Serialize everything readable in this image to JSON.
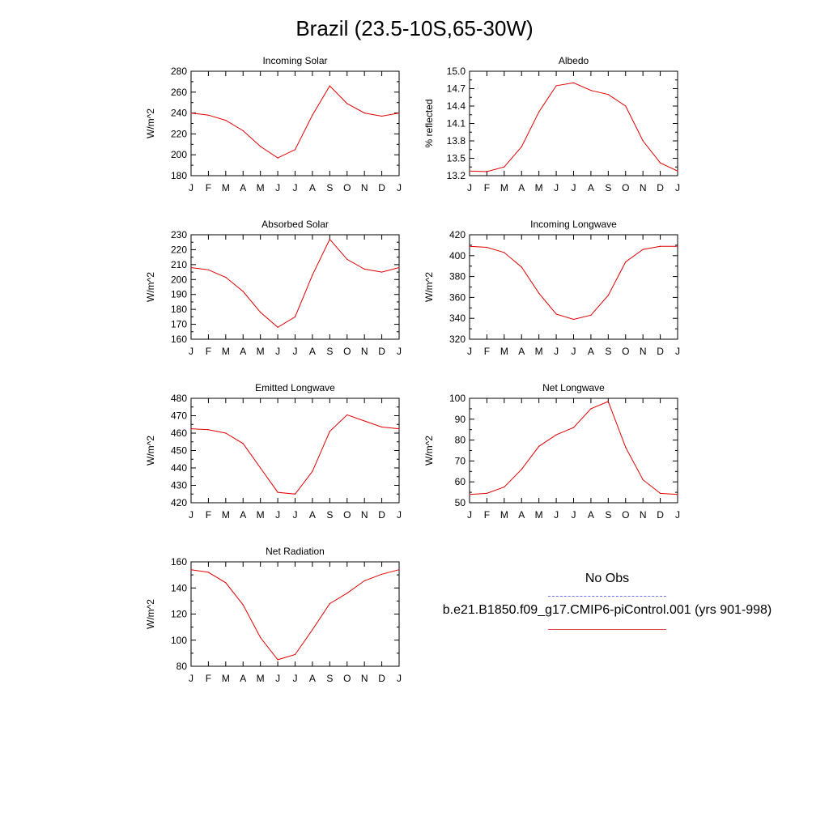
{
  "title": "Brazil (23.5-10S,65-30W)",
  "colors": {
    "model": "#e00000",
    "obs": "#6f6ff0"
  },
  "legend": {
    "obs_label": "No Obs",
    "model_label": "b.e21.B1850.f09_g17.CMIP6-piControl.001 (yrs 901-998)"
  },
  "chart_data": [
    {
      "type": "line",
      "title": "Incoming Solar",
      "ylabel": "W/m^2",
      "categories": [
        "J",
        "F",
        "M",
        "A",
        "M",
        "J",
        "J",
        "A",
        "S",
        "O",
        "N",
        "D",
        "J"
      ],
      "ylim": [
        180,
        280
      ],
      "yticks": [
        "180",
        "200",
        "220",
        "240",
        "260",
        "280"
      ],
      "yminor": 10,
      "series": [
        {
          "values": [
            240,
            238,
            233,
            223,
            208,
            197,
            205,
            238,
            266,
            249,
            240,
            237,
            240
          ]
        }
      ]
    },
    {
      "type": "line",
      "title": "Albedo",
      "ylabel": "% reflected",
      "categories": [
        "J",
        "F",
        "M",
        "A",
        "M",
        "J",
        "J",
        "A",
        "S",
        "O",
        "N",
        "D",
        "J"
      ],
      "ylim": [
        13.2,
        15.0
      ],
      "yticks": [
        "13.2",
        "13.5",
        "13.8",
        "14.1",
        "14.4",
        "14.7",
        "15.0"
      ],
      "yminor": 0.15,
      "series": [
        {
          "values": [
            13.28,
            13.27,
            13.35,
            13.7,
            14.3,
            14.75,
            14.8,
            14.67,
            14.6,
            14.4,
            13.8,
            13.42,
            13.28
          ]
        }
      ]
    },
    {
      "type": "line",
      "title": "Absorbed Solar",
      "ylabel": "W/m^2",
      "categories": [
        "J",
        "F",
        "M",
        "A",
        "M",
        "J",
        "J",
        "A",
        "S",
        "O",
        "N",
        "D",
        "J"
      ],
      "ylim": [
        160,
        230
      ],
      "yticks": [
        "160",
        "170",
        "180",
        "190",
        "200",
        "210",
        "220",
        "230"
      ],
      "yminor": 5,
      "series": [
        {
          "values": [
            208,
            206.5,
            201.5,
            192,
            178,
            168,
            175,
            203,
            227,
            213.5,
            207,
            205,
            208
          ]
        }
      ]
    },
    {
      "type": "line",
      "title": "Incoming Longwave",
      "ylabel": "W/m^2",
      "categories": [
        "J",
        "F",
        "M",
        "A",
        "M",
        "J",
        "J",
        "A",
        "S",
        "O",
        "N",
        "D",
        "J"
      ],
      "ylim": [
        320,
        420
      ],
      "yticks": [
        "320",
        "340",
        "360",
        "380",
        "400",
        "420"
      ],
      "yminor": 10,
      "series": [
        {
          "values": [
            409,
            408,
            403,
            389,
            364,
            344,
            339,
            343,
            362,
            394,
            406,
            409,
            409
          ]
        }
      ]
    },
    {
      "type": "line",
      "title": "Emitted Longwave",
      "ylabel": "W/m^2",
      "categories": [
        "J",
        "F",
        "M",
        "A",
        "M",
        "J",
        "J",
        "A",
        "S",
        "O",
        "N",
        "D",
        "J"
      ],
      "ylim": [
        420,
        480
      ],
      "yticks": [
        "420",
        "430",
        "440",
        "450",
        "460",
        "470",
        "480"
      ],
      "yminor": 5,
      "series": [
        {
          "values": [
            462.5,
            462,
            460,
            454,
            440,
            426,
            425,
            438,
            461,
            470.5,
            467,
            463.5,
            462.5
          ]
        }
      ]
    },
    {
      "type": "line",
      "title": "Net Longwave",
      "ylabel": "W/m^2",
      "categories": [
        "J",
        "F",
        "M",
        "A",
        "M",
        "J",
        "J",
        "A",
        "S",
        "O",
        "N",
        "D",
        "J"
      ],
      "ylim": [
        50,
        100
      ],
      "yticks": [
        "50",
        "60",
        "70",
        "80",
        "90",
        "100"
      ],
      "yminor": 5,
      "series": [
        {
          "values": [
            54,
            54.5,
            57.5,
            66,
            77,
            82.5,
            86,
            95,
            98.5,
            76.5,
            61,
            54.5,
            54
          ]
        }
      ]
    },
    {
      "type": "line",
      "title": "Net Radiation",
      "ylabel": "W/m^2",
      "categories": [
        "J",
        "F",
        "M",
        "A",
        "M",
        "J",
        "J",
        "A",
        "S",
        "O",
        "N",
        "D",
        "J"
      ],
      "ylim": [
        80,
        160
      ],
      "yticks": [
        "80",
        "100",
        "120",
        "140",
        "160"
      ],
      "yminor": 10,
      "series": [
        {
          "values": [
            154,
            152,
            144,
            127,
            102,
            85,
            89,
            108,
            128,
            136,
            145.5,
            150.5,
            154
          ]
        }
      ]
    }
  ]
}
